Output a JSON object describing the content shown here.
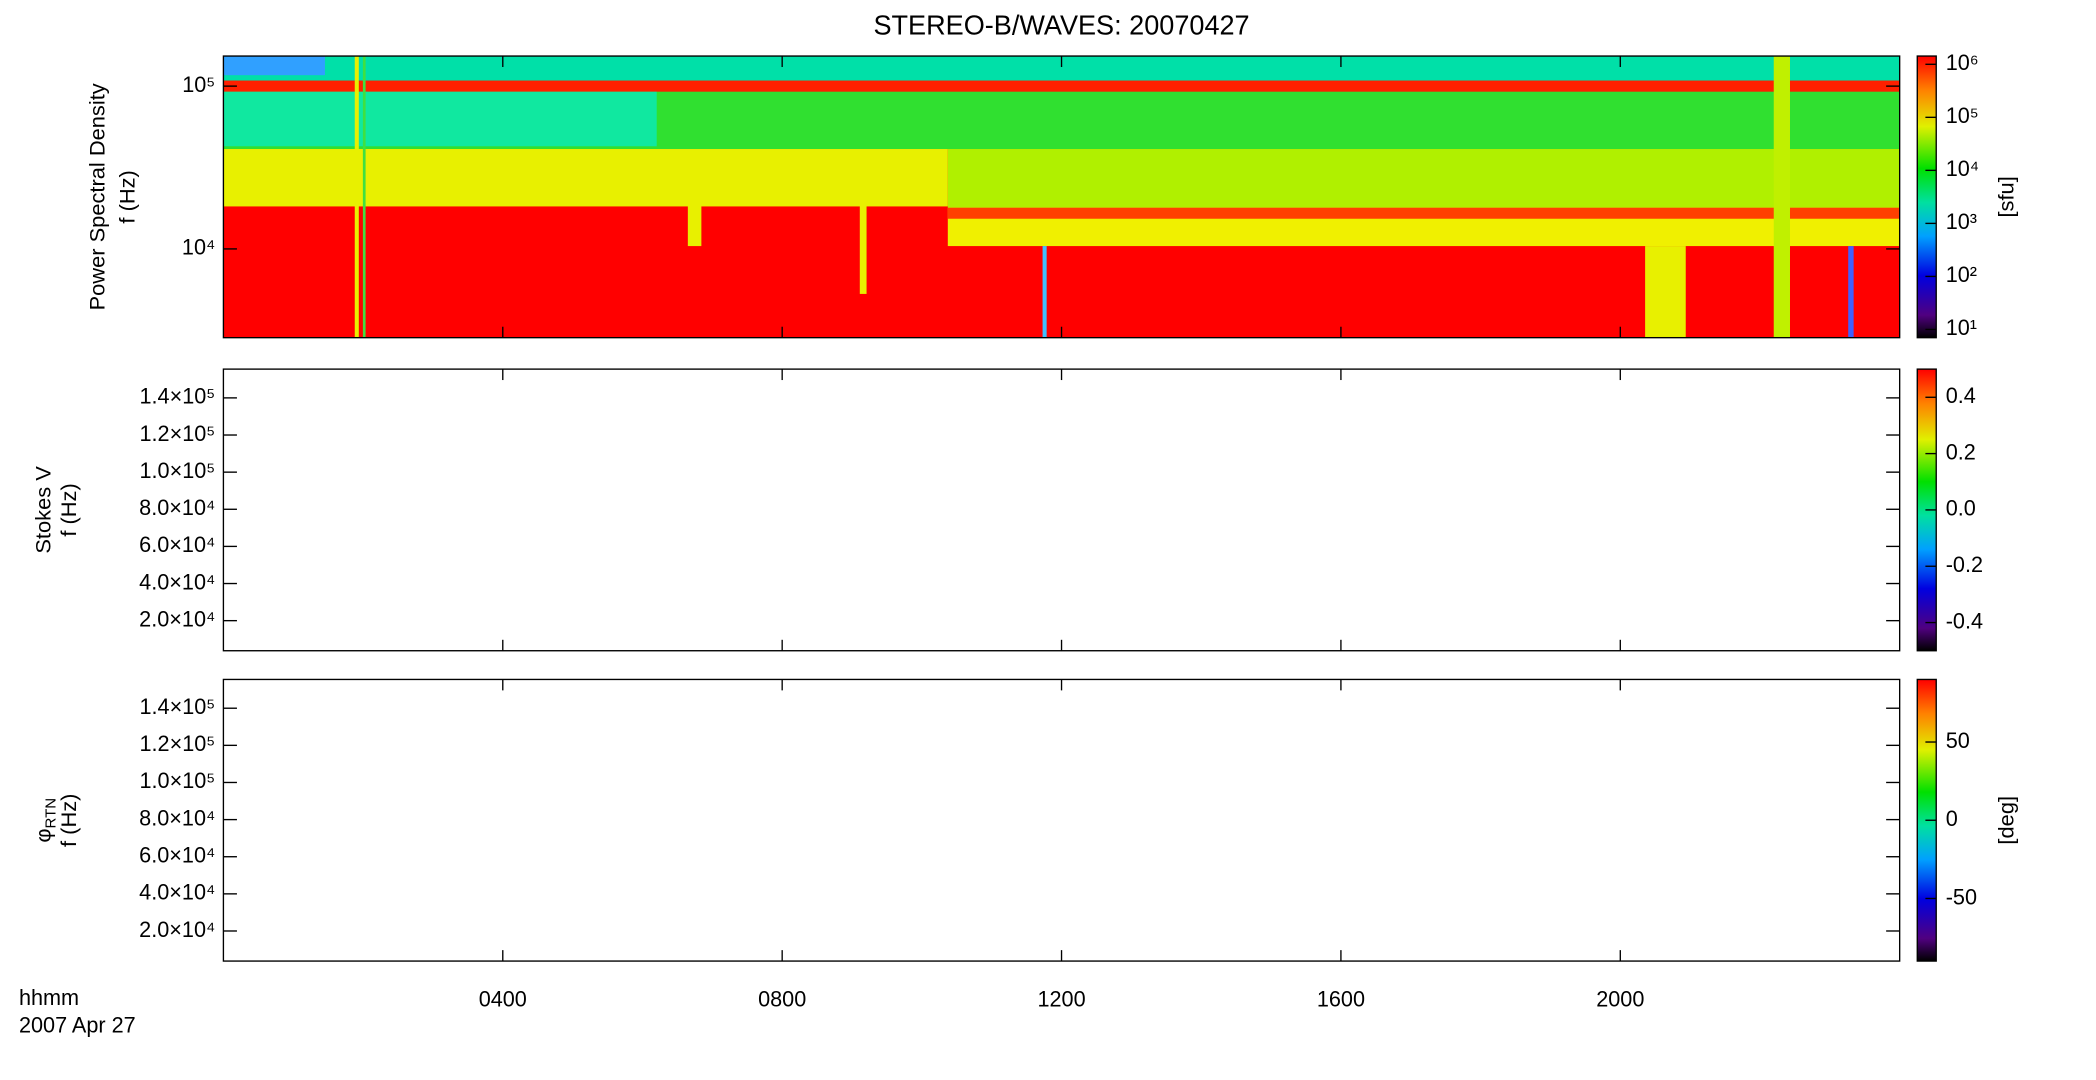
{
  "title": "STEREO-B/WAVES: 20070427",
  "xaxis": {
    "label": "hhmm",
    "sublabel": "2007 Apr 27",
    "xlim": [
      0,
      24
    ],
    "xticks": [
      {
        "value": 4,
        "label": "0400"
      },
      {
        "value": 8,
        "label": "0800"
      },
      {
        "value": 12,
        "label": "1200"
      },
      {
        "value": 16,
        "label": "1600"
      },
      {
        "value": 20,
        "label": "2000"
      }
    ]
  },
  "chart_data": [
    {
      "type": "spectrogram",
      "ylabel": "Power Spectral Density",
      "ylabel2": "f (Hz)",
      "ylog": true,
      "ylim": [
        2850,
        153000
      ],
      "yticks": [
        {
          "value": 10000,
          "label": "10⁴"
        },
        {
          "value": 100000,
          "label": "10⁵"
        }
      ],
      "colorbar_label": "[sfu]",
      "zlog": true,
      "zlim": [
        7,
        1430000
      ],
      "zticks": [
        {
          "value": 10,
          "label": "10¹"
        },
        {
          "value": 100,
          "label": "10²"
        },
        {
          "value": 1000,
          "label": "10³"
        },
        {
          "value": 10000,
          "label": "10⁴"
        },
        {
          "value": 100000,
          "label": "10⁵"
        },
        {
          "value": 1000000,
          "label": "10⁶"
        }
      ]
    },
    {
      "type": "spectrogram",
      "ylabel": "Stokes V",
      "ylabel2": "f (Hz)",
      "ylog": false,
      "ylim": [
        3800,
        155500
      ],
      "yticks": [
        {
          "value": 20000,
          "label": "2.0×10⁴"
        },
        {
          "value": 40000,
          "label": "4.0×10⁴"
        },
        {
          "value": 60000,
          "label": "6.0×10⁴"
        },
        {
          "value": 80000,
          "label": "8.0×10⁴"
        },
        {
          "value": 100000,
          "label": "1.0×10⁵"
        },
        {
          "value": 120000,
          "label": "1.2×10⁵"
        },
        {
          "value": 140000,
          "label": "1.4×10⁵"
        }
      ],
      "zlog": false,
      "zlim": [
        -0.5,
        0.5
      ],
      "zticks": [
        -0.4,
        -0.2,
        {
          "value": 0,
          "label": "0.0"
        },
        0.2,
        0.4
      ]
    },
    {
      "type": "spectrogram",
      "ylabel": "φ",
      "ylabel_sub": "RTN",
      "ylabel2": "f (Hz)",
      "ylog": false,
      "ylim": [
        3800,
        155500
      ],
      "yticks": [
        {
          "value": 20000,
          "label": "2.0×10⁴"
        },
        {
          "value": 40000,
          "label": "4.0×10⁴"
        },
        {
          "value": 60000,
          "label": "6.0×10⁴"
        },
        {
          "value": 80000,
          "label": "8.0×10⁴"
        },
        {
          "value": 100000,
          "label": "1.0×10⁵"
        },
        {
          "value": 120000,
          "label": "1.2×10⁵"
        },
        {
          "value": 140000,
          "label": "1.4×10⁵"
        }
      ],
      "colorbar_label": "[deg]",
      "zlog": false,
      "zlim": [
        -90,
        90
      ],
      "zticks": [
        -50,
        0,
        50
      ]
    }
  ]
}
